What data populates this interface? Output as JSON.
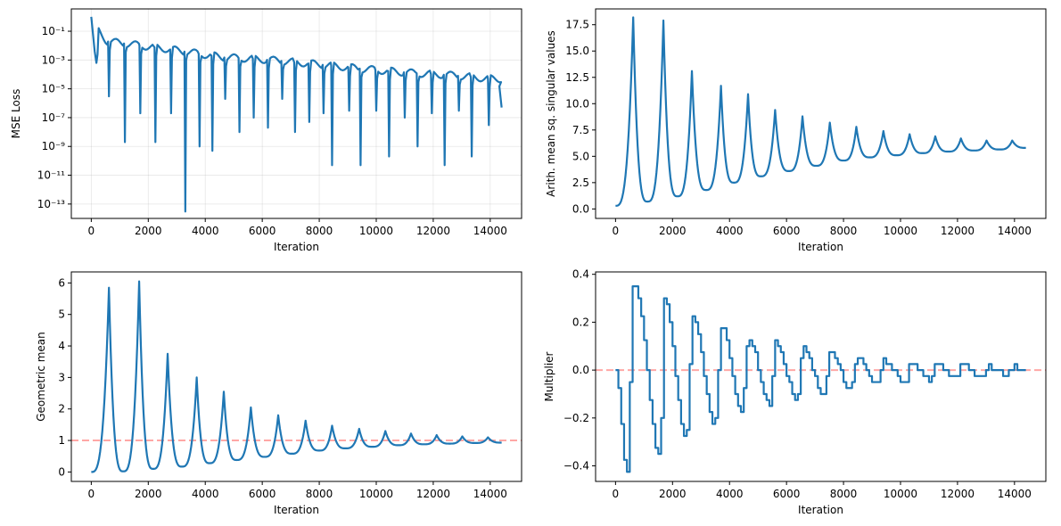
{
  "colors": {
    "series": "#1f77b4",
    "reference": "#ff9896"
  },
  "chart_data": [
    {
      "type": "line",
      "xlabel": "Iteration",
      "ylabel": "MSE Loss",
      "yscale": "log",
      "grid": true,
      "xlim": [
        -700,
        15100
      ],
      "ylim_exp": [
        -14,
        0.55
      ],
      "xticks": [
        0,
        2000,
        4000,
        6000,
        8000,
        10000,
        12000,
        14000
      ],
      "yticks_exp": [
        -13,
        -11,
        -9,
        -7,
        -5,
        -3,
        -1
      ],
      "ytick_labels": [
        "10⁻¹³",
        "10⁻¹¹",
        "10⁻⁹",
        "10⁻⁷",
        "10⁻⁵",
        "10⁻³",
        "10⁻¹"
      ],
      "model": {
        "peaks": [
          [
            0,
            1.0
          ],
          [
            550,
            0.04
          ],
          [
            1600,
            0.022
          ],
          [
            2650,
            0.012
          ],
          [
            3650,
            0.006
          ],
          [
            4700,
            0.003
          ],
          [
            5650,
            0.0025
          ],
          [
            6600,
            0.0018
          ],
          [
            7550,
            0.0012
          ],
          [
            8500,
            0.0008
          ],
          [
            9450,
            0.0005
          ],
          [
            10400,
            0.00035
          ],
          [
            11300,
            0.00025
          ],
          [
            12200,
            0.0002
          ],
          [
            13100,
            0.00015
          ],
          [
            14000,
            0.0001
          ]
        ],
        "dips": [
          [
            620,
            3e-06
          ],
          [
            1180,
            2e-09
          ],
          [
            1720,
            2e-07
          ],
          [
            2250,
            2e-09
          ],
          [
            2800,
            2e-07
          ],
          [
            3300,
            3e-14
          ],
          [
            3800,
            1e-09
          ],
          [
            4250,
            5e-10
          ],
          [
            4700,
            2e-06
          ],
          [
            5200,
            1e-08
          ],
          [
            5700,
            1e-07
          ],
          [
            6200,
            2e-08
          ],
          [
            6700,
            2e-06
          ],
          [
            7150,
            1e-08
          ],
          [
            7650,
            5e-08
          ],
          [
            8150,
            2e-07
          ],
          [
            8450,
            5e-11
          ],
          [
            9050,
            3e-07
          ],
          [
            9450,
            5e-11
          ],
          [
            10000,
            3e-07
          ],
          [
            10450,
            2e-10
          ],
          [
            11000,
            1e-07
          ],
          [
            11450,
            1e-09
          ],
          [
            11950,
            2e-07
          ],
          [
            12400,
            5e-11
          ],
          [
            12900,
            3e-07
          ],
          [
            13350,
            2e-10
          ],
          [
            13950,
            3e-08
          ]
        ],
        "end": [
          14400,
          5e-07
        ]
      }
    },
    {
      "type": "line",
      "xlabel": "Iteration",
      "ylabel": "Arith. mean sq. singular values",
      "grid": false,
      "xlim": [
        -700,
        15100
      ],
      "ylim": [
        -0.9,
        19.0
      ],
      "xticks": [
        0,
        2000,
        4000,
        6000,
        8000,
        10000,
        12000,
        14000
      ],
      "yticks": [
        0.0,
        2.5,
        5.0,
        7.5,
        10.0,
        12.5,
        15.0,
        17.5
      ],
      "ytick_labels": [
        "0.0",
        "2.5",
        "5.0",
        "7.5",
        "10.0",
        "12.5",
        "15.0",
        "17.5"
      ],
      "model": {
        "peaks": [
          [
            620,
            18.2
          ],
          [
            1680,
            17.9
          ],
          [
            2680,
            13.1
          ],
          [
            3700,
            11.7
          ],
          [
            4650,
            10.9
          ],
          [
            5600,
            9.4
          ],
          [
            6560,
            8.8
          ],
          [
            7520,
            8.2
          ],
          [
            8450,
            7.8
          ],
          [
            9400,
            7.4
          ],
          [
            10320,
            7.1
          ],
          [
            11220,
            6.9
          ],
          [
            12120,
            6.7
          ],
          [
            13020,
            6.5
          ],
          [
            13920,
            6.5
          ]
        ],
        "mins": [
          [
            0,
            0.3
          ],
          [
            1120,
            0.7
          ],
          [
            2170,
            1.2
          ],
          [
            3180,
            1.8
          ],
          [
            4150,
            2.5
          ],
          [
            5100,
            3.1
          ],
          [
            6080,
            3.6
          ],
          [
            7040,
            4.1
          ],
          [
            8000,
            4.6
          ],
          [
            8920,
            4.9
          ],
          [
            9860,
            5.1
          ],
          [
            10780,
            5.3
          ],
          [
            11680,
            5.45
          ],
          [
            12580,
            5.55
          ],
          [
            13480,
            5.65
          ],
          [
            14400,
            5.8
          ]
        ]
      },
      "reference": null
    },
    {
      "type": "line",
      "xlabel": "Iteration",
      "ylabel": "Geometric mean",
      "grid": false,
      "xlim": [
        -700,
        15100
      ],
      "ylim": [
        -0.3,
        6.35
      ],
      "xticks": [
        0,
        2000,
        4000,
        6000,
        8000,
        10000,
        12000,
        14000
      ],
      "yticks": [
        0,
        1,
        2,
        3,
        4,
        5,
        6
      ],
      "ytick_labels": [
        "0",
        "1",
        "2",
        "3",
        "4",
        "5",
        "6"
      ],
      "reference": 1.0,
      "model": {
        "peaks": [
          [
            620,
            5.85
          ],
          [
            1680,
            6.05
          ],
          [
            2680,
            3.75
          ],
          [
            3700,
            3.0
          ],
          [
            4650,
            2.55
          ],
          [
            5600,
            2.05
          ],
          [
            6560,
            1.8
          ],
          [
            7520,
            1.63
          ],
          [
            8450,
            1.47
          ],
          [
            9400,
            1.37
          ],
          [
            10320,
            1.3
          ],
          [
            11220,
            1.22
          ],
          [
            12120,
            1.17
          ],
          [
            13020,
            1.13
          ],
          [
            13920,
            1.1
          ]
        ],
        "mins": [
          [
            0,
            0.0
          ],
          [
            1120,
            0.02
          ],
          [
            2170,
            0.1
          ],
          [
            3180,
            0.17
          ],
          [
            4150,
            0.28
          ],
          [
            5100,
            0.38
          ],
          [
            6080,
            0.48
          ],
          [
            7040,
            0.58
          ],
          [
            8000,
            0.68
          ],
          [
            8920,
            0.75
          ],
          [
            9860,
            0.8
          ],
          [
            10780,
            0.85
          ],
          [
            11680,
            0.88
          ],
          [
            12580,
            0.9
          ],
          [
            13480,
            0.92
          ],
          [
            14400,
            0.93
          ]
        ]
      }
    },
    {
      "type": "line",
      "xlabel": "Iteration",
      "ylabel": "Multiplier",
      "grid": false,
      "xlim": [
        -700,
        15100
      ],
      "ylim": [
        -0.465,
        0.41
      ],
      "xticks": [
        0,
        2000,
        4000,
        6000,
        8000,
        10000,
        12000,
        14000
      ],
      "yticks": [
        -0.4,
        -0.2,
        0.0,
        0.2,
        0.4
      ],
      "ytick_labels": [
        "−0.4",
        "−0.2",
        "0.0",
        "0.2",
        "0.4"
      ],
      "reference": 0.0,
      "model": {
        "troughs": [
          [
            380,
            -0.43
          ],
          [
            1550,
            -0.36
          ],
          [
            2450,
            -0.28
          ],
          [
            3450,
            -0.23
          ],
          [
            4400,
            -0.18
          ],
          [
            5400,
            -0.15
          ],
          [
            6350,
            -0.12
          ],
          [
            7300,
            -0.1
          ],
          [
            8250,
            -0.08
          ],
          [
            9200,
            -0.06
          ],
          [
            10150,
            -0.05
          ],
          [
            11000,
            -0.04
          ],
          [
            11900,
            -0.035
          ],
          [
            12800,
            -0.03
          ],
          [
            13700,
            -0.02
          ]
        ],
        "crests": [
          [
            630,
            0.37
          ],
          [
            1700,
            0.305
          ],
          [
            2720,
            0.225
          ],
          [
            3720,
            0.18
          ],
          [
            4650,
            0.14
          ],
          [
            5600,
            0.12
          ],
          [
            6560,
            0.095
          ],
          [
            7520,
            0.075
          ],
          [
            8450,
            0.055
          ],
          [
            9400,
            0.04
          ],
          [
            10350,
            0.03
          ],
          [
            11250,
            0.025
          ],
          [
            12150,
            0.02
          ],
          [
            13050,
            0.015
          ],
          [
            13950,
            0.015
          ]
        ],
        "step": 100,
        "end": [
          14400,
          0.0
        ]
      }
    }
  ]
}
